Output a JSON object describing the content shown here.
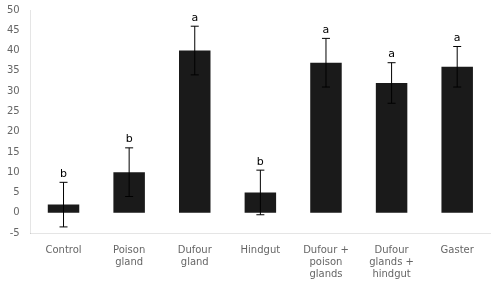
{
  "chart_data": {
    "type": "bar",
    "categories": [
      "Control",
      "Poison\ngland",
      "Dufour\ngland",
      "Hindgut",
      "Dufour +\npoison\nglands",
      "Dufour\nglands +\nhindgut",
      "Gaster"
    ],
    "values": [
      2.0,
      10.0,
      40.0,
      5.0,
      37.0,
      32.0,
      36.0
    ],
    "errors": [
      5.5,
      6.0,
      6.0,
      5.5,
      6.0,
      5.0,
      5.0
    ],
    "letters": [
      "b",
      "b",
      "a",
      "b",
      "a",
      "a",
      "a"
    ],
    "color": "#1a1a1a",
    "ylim": [
      -5,
      50
    ],
    "yticks": [
      -5,
      0,
      5,
      10,
      15,
      20,
      25,
      30,
      35,
      40,
      45,
      50
    ],
    "grid": false
  }
}
